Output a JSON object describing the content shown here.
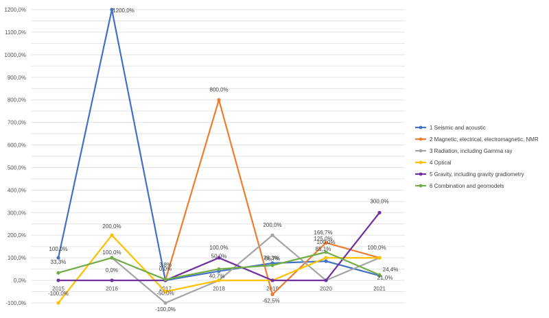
{
  "chart_data": {
    "type": "line",
    "title": "",
    "xlabel": "",
    "ylabel": "",
    "ylim": [
      -100,
      1200
    ],
    "ytick_step": 100,
    "ytick_labels": [
      "-100,0%",
      "0,0%",
      "100,0%",
      "200,0%",
      "300,0%",
      "400,0%",
      "500,0%",
      "600,0%",
      "700,0%",
      "800,0%",
      "900,0%",
      "1000,0%",
      "1100,0%",
      "1200,0%"
    ],
    "categories": [
      "2015",
      "2016",
      "2017",
      "2018",
      "2019",
      "2020",
      "2021"
    ],
    "legend_position": "right",
    "series": [
      {
        "name": "1 Seismic and acoustic",
        "color": "#4472c4",
        "values": [
          100,
          1200,
          0,
          40.7,
          76.3,
          85.1,
          21.0
        ],
        "labels": [
          "100,0%",
          "1200,0%",
          "",
          "40,7%",
          "76,3%",
          "85,1%",
          "21,0%"
        ]
      },
      {
        "name": "2 Magnetic, electrical, electromagnetic, NMR",
        "color": "#ed7d31",
        "values": [
          null,
          null,
          0,
          800,
          -62.5,
          166.7,
          100
        ],
        "labels": [
          "",
          "",
          "0,0%",
          "800,0%",
          "-62,5%",
          "166,7%",
          "100,0%"
        ]
      },
      {
        "name": "3 Radiation, including Gamma ray",
        "color": "#a5a5a5",
        "values": [
          null,
          100,
          -100,
          0,
          200,
          0,
          100
        ],
        "labels": [
          "",
          "100,0%",
          "-100,0%",
          "",
          "200,0%",
          "",
          ""
        ]
      },
      {
        "name": "4 Optical",
        "color": "#ffc000",
        "values": [
          -100,
          200,
          -50,
          0,
          0,
          100,
          100
        ],
        "labels": [
          "-100,0%",
          "200,0%",
          "-50,0%",
          "",
          "",
          "100,0%",
          ""
        ]
      },
      {
        "name": "5 Gravity, including gravity gradiometry",
        "color": "#7030a0",
        "values": [
          0,
          0,
          0,
          100,
          0,
          0,
          300
        ],
        "labels": [
          "",
          "0,0%",
          "",
          "100,0%",
          "",
          "",
          "300,0%"
        ]
      },
      {
        "name": "6 Combination and geomodels",
        "color": "#70ad47",
        "values": [
          33.3,
          100,
          3.8,
          50,
          66.7,
          125,
          24.4
        ],
        "labels": [
          "33,3%",
          "",
          "3,8%",
          "50,0%",
          "66,7%",
          "125,0%",
          "24,4%"
        ]
      }
    ]
  }
}
